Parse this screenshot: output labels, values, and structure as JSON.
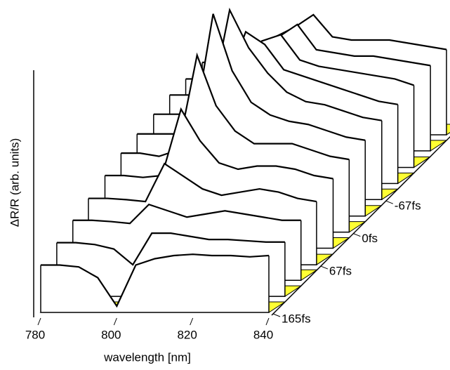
{
  "chart_data": {
    "type": "waterfall",
    "xlabel": "wavelength [nm]",
    "ylabel": "ΔR/R (arb. units)",
    "xlim": [
      780,
      840
    ],
    "xticks": [
      780,
      800,
      820,
      840
    ],
    "zlim": [
      165,
      -200
    ],
    "zticks": [
      {
        "value": 165,
        "label": "165fs"
      },
      {
        "value": 67,
        "label": "67fs"
      },
      {
        "value": 0,
        "label": "0fs"
      },
      {
        "value": -67,
        "label": "-67fs"
      }
    ],
    "floor_color": "#ffff33",
    "x": [
      780,
      785,
      790,
      795,
      800,
      805,
      810,
      815,
      820,
      825,
      830,
      835,
      840
    ],
    "series": [
      {
        "delay": 165,
        "values": [
          0.75,
          0.75,
          0.72,
          0.55,
          0.1,
          0.75,
          0.85,
          0.9,
          0.92,
          0.9,
          0.9,
          0.88,
          0.9
        ]
      },
      {
        "delay": 132,
        "values": [
          0.85,
          0.85,
          0.82,
          0.75,
          0.5,
          1.0,
          1.0,
          0.95,
          0.9,
          0.9,
          0.88,
          0.86,
          0.86
        ]
      },
      {
        "delay": 99,
        "values": [
          0.95,
          0.95,
          0.93,
          0.9,
          1.2,
          1.1,
          1.0,
          1.05,
          1.1,
          1.05,
          1.0,
          0.95,
          0.95
        ]
      },
      {
        "delay": 67,
        "values": [
          1.05,
          1.05,
          1.03,
          1.0,
          1.6,
          1.4,
          1.2,
          1.1,
          1.15,
          1.2,
          1.15,
          1.05,
          1.0
        ]
      },
      {
        "delay": 33,
        "values": [
          1.15,
          1.15,
          1.12,
          1.15,
          2.2,
          1.7,
          1.35,
          1.25,
          1.3,
          1.3,
          1.25,
          1.15,
          1.1
        ]
      },
      {
        "delay": 0,
        "values": [
          1.25,
          1.25,
          1.2,
          1.3,
          2.8,
          2.0,
          1.6,
          1.4,
          1.4,
          1.4,
          1.3,
          1.2,
          1.15
        ]
      },
      {
        "delay": -33,
        "values": [
          1.3,
          1.3,
          1.3,
          1.4,
          3.2,
          2.3,
          1.8,
          1.6,
          1.5,
          1.45,
          1.35,
          1.25,
          1.2
        ]
      },
      {
        "delay": -67,
        "values": [
          1.35,
          1.35,
          1.35,
          1.5,
          3.0,
          2.4,
          2.0,
          1.7,
          1.55,
          1.5,
          1.4,
          1.3,
          1.25
        ]
      },
      {
        "delay": -100,
        "values": [
          1.4,
          1.4,
          1.4,
          1.6,
          2.4,
          2.2,
          1.8,
          1.7,
          1.6,
          1.5,
          1.4,
          1.3,
          1.25
        ]
      },
      {
        "delay": -133,
        "values": [
          1.4,
          1.4,
          1.45,
          1.6,
          2.0,
          2.1,
          1.7,
          1.6,
          1.55,
          1.5,
          1.45,
          1.4,
          1.3
        ]
      },
      {
        "delay": -167,
        "values": [
          1.4,
          1.4,
          1.45,
          1.6,
          1.8,
          2.0,
          1.6,
          1.55,
          1.5,
          1.5,
          1.45,
          1.4,
          1.35
        ]
      },
      {
        "delay": -200,
        "values": [
          1.4,
          1.4,
          1.45,
          1.55,
          1.7,
          1.9,
          1.55,
          1.5,
          1.5,
          1.5,
          1.45,
          1.4,
          1.35
        ]
      }
    ]
  }
}
